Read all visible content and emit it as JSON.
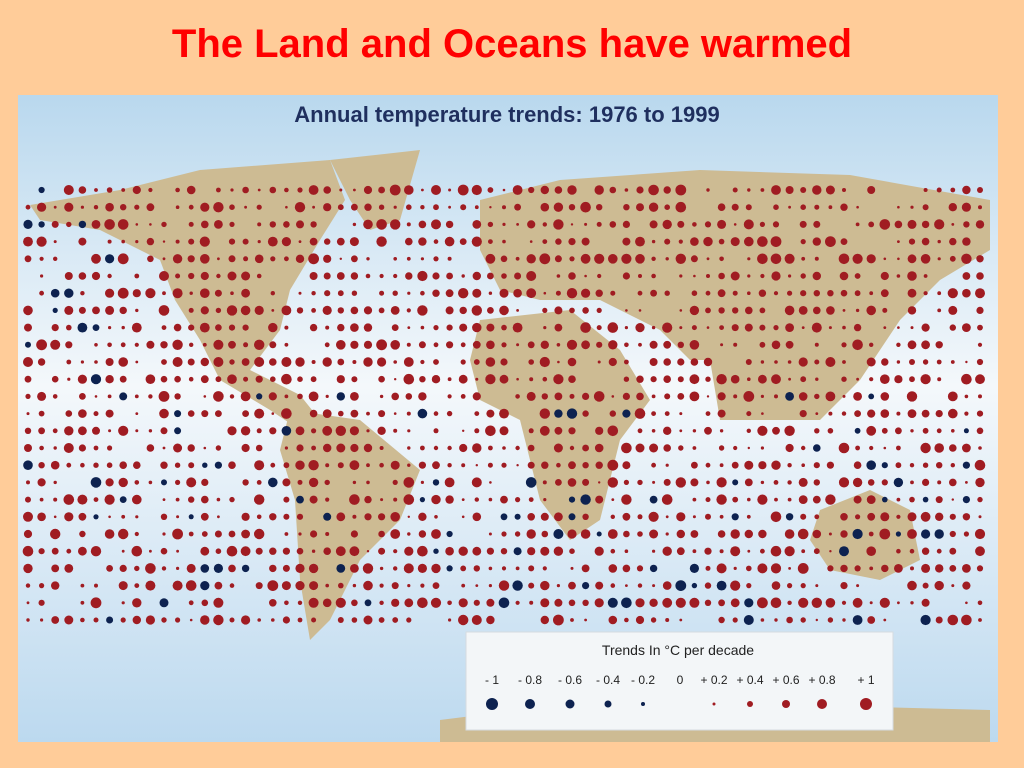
{
  "title": "The Land and Oceans have warmed",
  "map": {
    "title": "Annual temperature trends:  1976 to 1999",
    "legend": {
      "title": "Trends In °C per decade",
      "items": [
        "- 1",
        "- 0.8",
        "- 0.6",
        "- 0.4",
        "- 0.2",
        "0",
        "+ 0.2",
        "+ 0.4",
        "+ 0.6",
        "+ 0.8",
        "+ 1"
      ]
    }
  }
}
